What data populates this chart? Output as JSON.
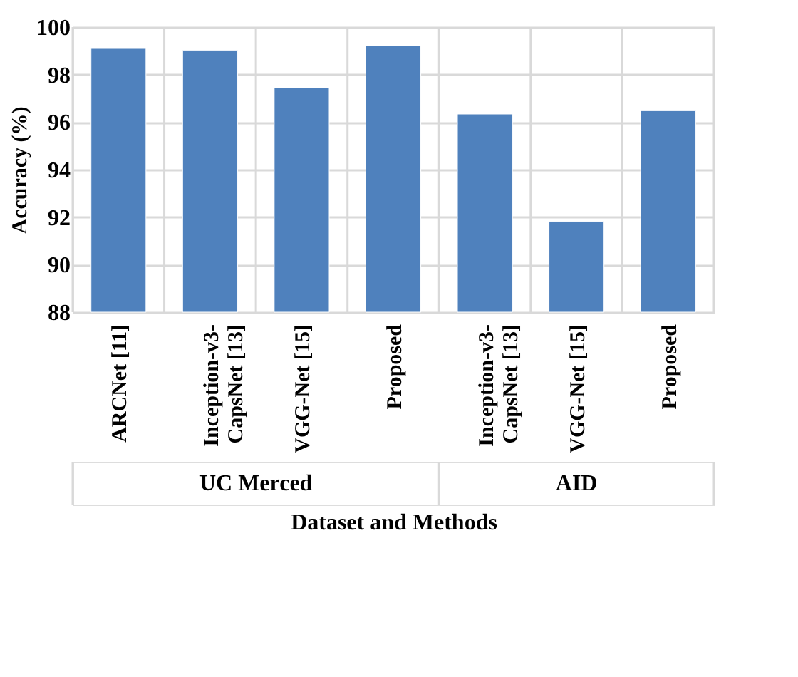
{
  "chart_data": {
    "type": "bar",
    "xlabel": "Dataset and Methods",
    "ylabel": "Accuracy (%)",
    "categories": [
      "ARCNet [11]",
      "Inception-v3-CapsNet [13]",
      "VGG-Net [15]",
      "Proposed",
      "Inception-v3-CapsNet [13]",
      "VGG-Net [15]",
      "Proposed"
    ],
    "values": [
      99.1,
      99.03,
      97.45,
      99.21,
      96.34,
      91.82,
      96.48
    ],
    "color": "#4f81bd",
    "ylim": [
      88,
      100
    ],
    "yticks": [
      88,
      90,
      92,
      94,
      96,
      98,
      100
    ],
    "grid": true,
    "annotations": [
      "UC Merced",
      "AID"
    ]
  }
}
